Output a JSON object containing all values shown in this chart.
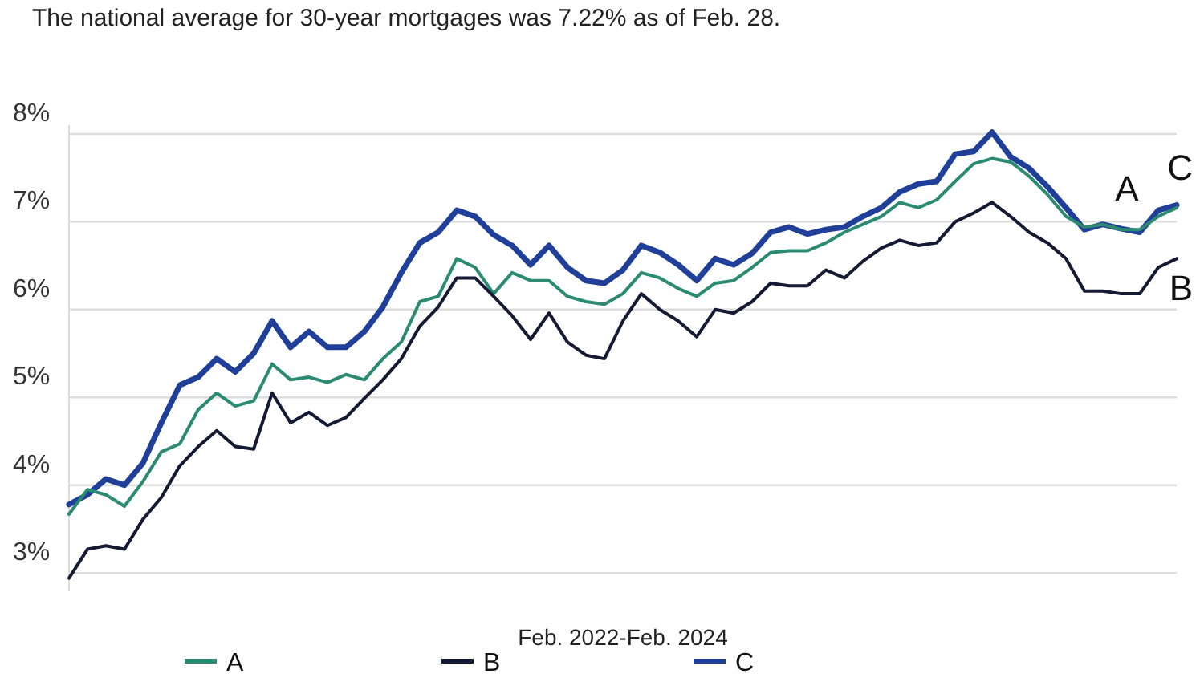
{
  "chart_data": {
    "type": "line",
    "title": "The national average for 30-year mortgages was 7.22% as of Feb. 28.",
    "xlabel": "Feb. 2022-Feb. 2024",
    "categories": [
      null,
      null,
      null,
      null,
      null,
      null,
      null,
      null,
      null,
      null,
      null,
      null,
      null,
      null,
      null,
      null,
      null,
      null,
      null,
      null,
      null,
      null,
      null,
      null,
      null,
      null,
      null,
      null,
      null,
      null,
      null,
      null,
      null,
      null,
      null,
      null,
      null,
      null,
      null,
      null,
      null,
      null,
      null,
      null,
      null,
      null,
      null,
      null,
      null,
      null,
      null,
      null,
      null,
      null,
      null,
      null,
      null,
      null,
      null,
      null,
      null
    ],
    "series": [
      {
        "name": "C",
        "color": "#1f3f99",
        "values": [
          3.78,
          3.89,
          4.07,
          4.0,
          4.25,
          4.71,
          5.14,
          5.23,
          5.44,
          5.29,
          5.5,
          5.87,
          5.57,
          5.75,
          5.57,
          5.57,
          5.75,
          6.03,
          6.42,
          6.76,
          6.88,
          7.13,
          7.06,
          6.85,
          6.73,
          6.51,
          6.73,
          6.48,
          6.33,
          6.3,
          6.45,
          6.73,
          6.65,
          6.51,
          6.33,
          6.58,
          6.51,
          6.64,
          6.88,
          6.94,
          6.86,
          6.91,
          6.94,
          7.06,
          7.16,
          7.34,
          7.43,
          7.46,
          7.77,
          7.8,
          8.02,
          7.74,
          7.61,
          7.4,
          7.16,
          6.91,
          6.97,
          6.92,
          6.88,
          7.13,
          7.19
        ]
      },
      {
        "name": "A",
        "color": "#2a8a72",
        "values": [
          3.67,
          3.95,
          3.89,
          3.76,
          4.04,
          4.38,
          4.47,
          4.86,
          5.05,
          4.9,
          4.96,
          5.38,
          5.2,
          5.23,
          5.17,
          5.26,
          5.2,
          5.44,
          5.63,
          6.09,
          6.15,
          6.58,
          6.48,
          6.18,
          6.42,
          6.33,
          6.33,
          6.15,
          6.09,
          6.06,
          6.18,
          6.42,
          6.36,
          6.24,
          6.15,
          6.3,
          6.33,
          6.48,
          6.65,
          6.67,
          6.67,
          6.76,
          6.88,
          6.97,
          7.06,
          7.22,
          7.16,
          7.25,
          7.46,
          7.66,
          7.72,
          7.68,
          7.52,
          7.31,
          7.06,
          6.94,
          6.97,
          6.91,
          6.91,
          7.06,
          7.16
        ]
      },
      {
        "name": "B",
        "color": "#141a33",
        "values": [
          2.94,
          3.27,
          3.31,
          3.27,
          3.61,
          3.86,
          4.22,
          4.44,
          4.62,
          4.44,
          4.41,
          5.05,
          4.71,
          4.83,
          4.68,
          4.77,
          4.99,
          5.2,
          5.44,
          5.81,
          6.03,
          6.36,
          6.36,
          6.15,
          5.93,
          5.66,
          5.96,
          5.63,
          5.48,
          5.44,
          5.87,
          6.18,
          6.0,
          5.87,
          5.69,
          6.0,
          5.96,
          6.09,
          6.3,
          6.27,
          6.27,
          6.45,
          6.36,
          6.55,
          6.7,
          6.79,
          6.73,
          6.76,
          7.0,
          7.1,
          7.22,
          7.06,
          6.88,
          6.76,
          6.58,
          6.21,
          6.21,
          6.18,
          6.18,
          6.48,
          6.58
        ]
      }
    ],
    "ylim": [
      2.8,
      8.1
    ],
    "yticks": [
      {
        "value": 3,
        "label": "3%"
      },
      {
        "value": 4,
        "label": "4%"
      },
      {
        "value": 5,
        "label": "5%"
      },
      {
        "value": 6,
        "label": "6%"
      },
      {
        "value": 7,
        "label": "7%"
      },
      {
        "value": 8,
        "label": "8%"
      }
    ],
    "grid": "y",
    "legend": "bottom",
    "marker": "none",
    "line_style": "solid"
  }
}
